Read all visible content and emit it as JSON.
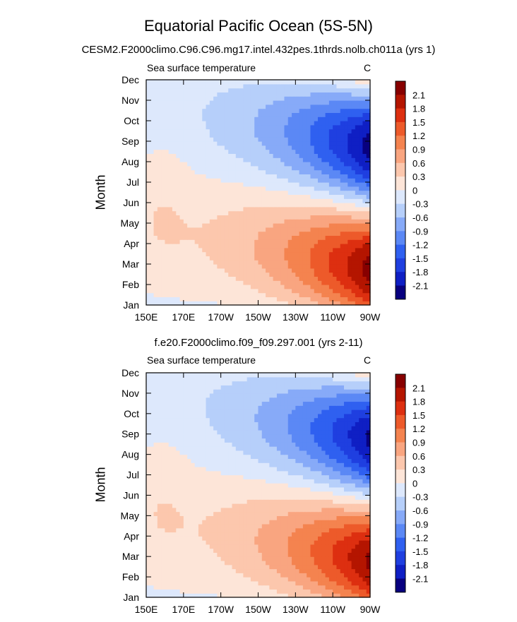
{
  "figure": {
    "title": "Equatorial Pacific Ocean (5S-5N)"
  },
  "colors": {
    "levels": [
      "#08007f",
      "#0f1fc4",
      "#1f3fe0",
      "#2f60f0",
      "#5b88f5",
      "#87aaf8",
      "#b6cffa",
      "#dde8fc",
      "#fde5d8",
      "#fcc7ad",
      "#f9a580",
      "#f4834f",
      "#ed5a2a",
      "#dd2f10",
      "#b41500",
      "#870000"
    ]
  },
  "chart_data": [
    {
      "type": "heatmap",
      "subtitle": "CESM2.F2000climo.C96.C96.mg17.intel.432pes.1thrds.nolb.ch011a (yrs 1)",
      "variable_label": "Sea surface temperature",
      "units": "C",
      "ylabel": "Month",
      "x_ticks": [
        "150E",
        "170E",
        "170W",
        "150W",
        "130W",
        "110W",
        "90W"
      ],
      "x_values_deg_east": [
        150,
        170,
        190,
        210,
        230,
        250,
        270
      ],
      "xlim": [
        150,
        270
      ],
      "y_ticks": [
        "Jan",
        "Feb",
        "Mar",
        "Apr",
        "May",
        "Jun",
        "Jul",
        "Aug",
        "Sep",
        "Oct",
        "Nov",
        "Dec"
      ],
      "colorbar_ticks": [
        "2.1",
        "1.8",
        "1.5",
        "1.2",
        "0.9",
        "0.6",
        "0.3",
        "0",
        "-0.3",
        "-0.6",
        "-0.9",
        "-1.2",
        "-1.5",
        "-1.8",
        "-2.1"
      ],
      "value_range": [
        -2.4,
        2.4
      ],
      "extremes": {
        "max_approx": 2.3,
        "max_location": "Mar-Apr near 95W",
        "min_approx": -2.3,
        "min_location": "Sep near 95W"
      }
    },
    {
      "type": "heatmap",
      "subtitle": "f.e20.F2000climo.f09_f09.297.001 (yrs 2-11)",
      "variable_label": "Sea surface temperature",
      "units": "C",
      "ylabel": "Month",
      "x_ticks": [
        "150E",
        "170E",
        "170W",
        "150W",
        "130W",
        "110W",
        "90W"
      ],
      "x_values_deg_east": [
        150,
        170,
        190,
        210,
        230,
        250,
        270
      ],
      "xlim": [
        150,
        270
      ],
      "y_ticks": [
        "Jan",
        "Feb",
        "Mar",
        "Apr",
        "May",
        "Jun",
        "Jul",
        "Aug",
        "Sep",
        "Oct",
        "Nov",
        "Dec"
      ],
      "colorbar_ticks": [
        "2.1",
        "1.8",
        "1.5",
        "1.2",
        "0.9",
        "0.6",
        "0.3",
        "0",
        "-0.3",
        "-0.6",
        "-0.9",
        "-1.2",
        "-1.5",
        "-1.8",
        "-2.1"
      ],
      "value_range": [
        -2.4,
        2.4
      ],
      "extremes": {
        "max_approx": 2.3,
        "max_location": "Mar-Apr near 95W",
        "min_approx": -2.2,
        "min_location": "Sep near 95W"
      }
    }
  ]
}
